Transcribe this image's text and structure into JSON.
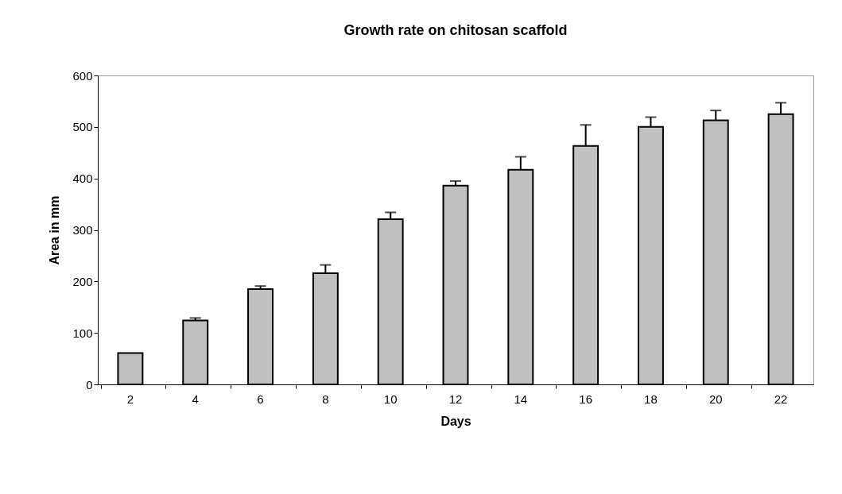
{
  "chart_data": {
    "type": "bar",
    "title": "Growth rate on chitosan scaffold",
    "xlabel": "Days",
    "ylabel": "Area in mm",
    "categories": [
      "2",
      "4",
      "6",
      "8",
      "10",
      "12",
      "14",
      "16",
      "18",
      "20",
      "22"
    ],
    "values": [
      61,
      124,
      185,
      216,
      321,
      386,
      417,
      463,
      500,
      513,
      525
    ],
    "errors": [
      null,
      [
        124,
        129
      ],
      [
        185,
        191
      ],
      [
        216,
        232
      ],
      [
        321,
        334
      ],
      [
        386,
        395
      ],
      [
        417,
        442
      ],
      [
        463,
        504
      ],
      [
        500,
        519
      ],
      [
        513,
        532
      ],
      [
        525,
        547
      ]
    ],
    "color": "#c0c0c0",
    "ylim": [
      0,
      600
    ],
    "yticks": [
      0,
      100,
      200,
      300,
      400,
      500,
      600
    ],
    "grid": false
  }
}
